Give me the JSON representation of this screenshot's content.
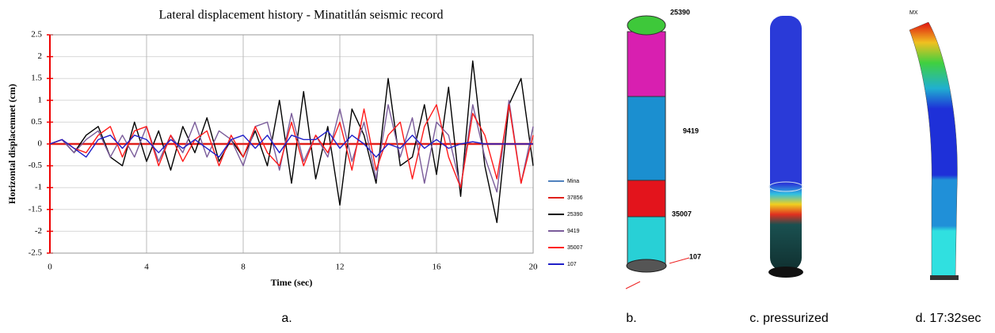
{
  "chart_data": {
    "type": "line",
    "title": "Lateral  displacement history - Minatitlán seismic record",
    "x_label": "Time (sec)",
    "y_label": "Horizontal displacemnet (cm)",
    "x": [
      0,
      0.5,
      1,
      1.5,
      2,
      2.5,
      3,
      3.5,
      4,
      4.5,
      5,
      5.5,
      6,
      6.5,
      7,
      7.5,
      8,
      8.5,
      9,
      9.5,
      10,
      10.5,
      11,
      11.5,
      12,
      12.5,
      13,
      13.5,
      14,
      14.5,
      15,
      15.5,
      16,
      16.5,
      17,
      17.5,
      18,
      18.5,
      19,
      19.5,
      20
    ],
    "series": [
      {
        "name": "Mina",
        "color": "#4f81bd",
        "values": [
          0,
          0,
          0,
          0,
          0,
          0,
          0,
          0,
          0,
          0,
          0,
          0,
          0,
          0,
          0,
          0,
          0,
          0,
          0,
          0,
          0,
          0,
          0,
          0,
          0,
          0,
          0,
          0,
          0,
          0,
          0,
          0,
          0,
          0,
          0,
          0,
          0,
          0,
          0,
          0,
          0
        ]
      },
      {
        "name": "37856",
        "color": "#e0201b",
        "values": [
          0,
          0,
          0,
          0,
          0,
          0,
          0,
          0,
          0,
          0,
          0,
          0,
          0,
          0,
          0,
          0,
          0,
          0,
          0,
          0,
          0,
          0,
          0,
          0,
          0,
          0,
          0,
          0,
          0,
          0,
          0,
          0,
          0,
          0,
          0,
          0,
          0,
          0,
          0,
          0,
          0
        ]
      },
      {
        "name": "25390",
        "color": "#000000",
        "values": [
          0,
          0.1,
          -0.2,
          0.2,
          0.4,
          -0.3,
          -0.5,
          0.5,
          -0.4,
          0.3,
          -0.6,
          0.4,
          -0.2,
          0.6,
          -0.4,
          0.1,
          -0.3,
          0.3,
          -0.5,
          1.0,
          -0.9,
          1.2,
          -0.8,
          0.4,
          -1.4,
          0.8,
          0.2,
          -0.9,
          1.5,
          -0.5,
          -0.3,
          0.9,
          -0.7,
          1.3,
          -1.2,
          1.9,
          -0.5,
          -1.8,
          0.9,
          1.5,
          -0.5
        ]
      },
      {
        "name": "9419",
        "color": "#7a5c9a",
        "values": [
          0,
          0.1,
          -0.2,
          0.1,
          0.3,
          -0.3,
          0.2,
          -0.3,
          0.4,
          -0.4,
          0.2,
          -0.2,
          0.5,
          -0.3,
          0.3,
          0.1,
          -0.5,
          0.4,
          0.5,
          -0.6,
          0.7,
          -0.4,
          0.2,
          -0.3,
          0.8,
          -0.4,
          0.5,
          -0.8,
          0.9,
          -0.3,
          0.6,
          -0.9,
          0.5,
          0.2,
          -1.0,
          0.9,
          -0.3,
          -1.1,
          1.0,
          -0.9,
          0.4
        ]
      },
      {
        "name": "35007",
        "color": "#ff1a1a",
        "values": [
          0,
          0.1,
          -0.1,
          -0.2,
          0.2,
          0.4,
          -0.3,
          0.3,
          0.4,
          -0.5,
          0.2,
          -0.4,
          0.1,
          0.3,
          -0.5,
          0.2,
          -0.3,
          0.4,
          -0.2,
          -0.5,
          0.5,
          -0.5,
          0.2,
          -0.2,
          0.5,
          -0.6,
          0.8,
          -0.6,
          0.2,
          0.5,
          -0.8,
          0.4,
          0.9,
          -0.3,
          -1.0,
          0.7,
          0.2,
          -0.8,
          0.9,
          -0.9,
          0.2
        ]
      },
      {
        "name": "107",
        "color": "#1f1fc8",
        "values": [
          0,
          0.1,
          -0.1,
          -0.3,
          0.1,
          0.2,
          -0.1,
          0.2,
          0.1,
          -0.2,
          0.1,
          -0.1,
          0.1,
          -0.1,
          -0.3,
          0.1,
          0.2,
          -0.1,
          0.2,
          -0.2,
          0.2,
          0.1,
          0.1,
          0.3,
          -0.1,
          0.2,
          0,
          -0.3,
          0,
          -0.1,
          0.2,
          -0.1,
          0.1,
          -0.1,
          0,
          0.05,
          0,
          0,
          0,
          0,
          0
        ]
      }
    ],
    "xlim": [
      0,
      20
    ],
    "xticks": [
      0,
      4,
      8,
      12,
      16,
      20
    ],
    "ylim": [
      -2.5,
      2.5
    ],
    "yticks": [
      -2.5,
      -2,
      -1.5,
      -1,
      -0.5,
      0,
      0.5,
      1,
      1.5,
      2,
      2.5
    ],
    "grid": true,
    "legend": "right"
  },
  "figure": {
    "captions": [
      "a.",
      "b.",
      "c. pressurized",
      "d. 17:32sec"
    ],
    "node_labels": [
      "25390",
      "9419",
      "35007",
      "107"
    ],
    "max_label": "MX"
  }
}
